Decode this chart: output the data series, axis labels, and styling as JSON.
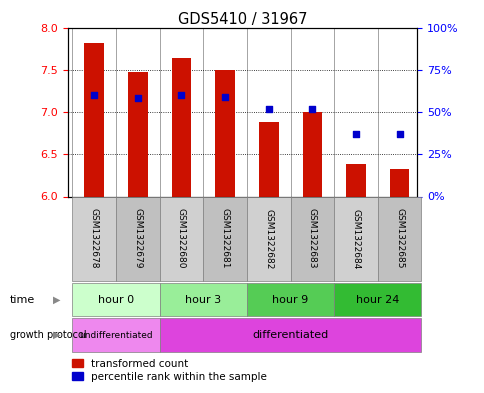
{
  "title": "GDS5410 / 31967",
  "samples": [
    "GSM1322678",
    "GSM1322679",
    "GSM1322680",
    "GSM1322681",
    "GSM1322682",
    "GSM1322683",
    "GSM1322684",
    "GSM1322685"
  ],
  "transformed_count": [
    7.82,
    7.47,
    7.64,
    7.5,
    6.88,
    7.0,
    6.38,
    6.32
  ],
  "percentile_rank": [
    60,
    58,
    60,
    59,
    52,
    52,
    37,
    37
  ],
  "ylim_left": [
    6.0,
    8.0
  ],
  "ylim_right": [
    0,
    100
  ],
  "yticks_left": [
    6.0,
    6.5,
    7.0,
    7.5,
    8.0
  ],
  "yticks_right": [
    0,
    25,
    50,
    75,
    100
  ],
  "ytick_labels_right": [
    "0%",
    "25%",
    "50%",
    "75%",
    "100%"
  ],
  "bar_color": "#cc1100",
  "dot_color": "#0000cc",
  "bar_bottom": 6.0,
  "time_groups": [
    {
      "label": "hour 0",
      "start": 0,
      "end": 1,
      "color": "#ccffcc"
    },
    {
      "label": "hour 3",
      "start": 2,
      "end": 3,
      "color": "#99ee99"
    },
    {
      "label": "hour 9",
      "start": 4,
      "end": 5,
      "color": "#55cc55"
    },
    {
      "label": "hour 24",
      "start": 6,
      "end": 7,
      "color": "#33bb33"
    }
  ],
  "undiff_color": "#ee88ee",
  "diff_color": "#dd44dd",
  "undiff_label": "undifferentiated",
  "diff_label": "differentiated",
  "undiff_start": 0,
  "undiff_end": 1,
  "diff_start": 2,
  "diff_end": 7,
  "legend_label_red": "transformed count",
  "legend_label_blue": "percentile rank within the sample",
  "cell_color_odd": "#d0d0d0",
  "cell_color_even": "#c0c0c0",
  "xlim": [
    -0.6,
    7.4
  ]
}
